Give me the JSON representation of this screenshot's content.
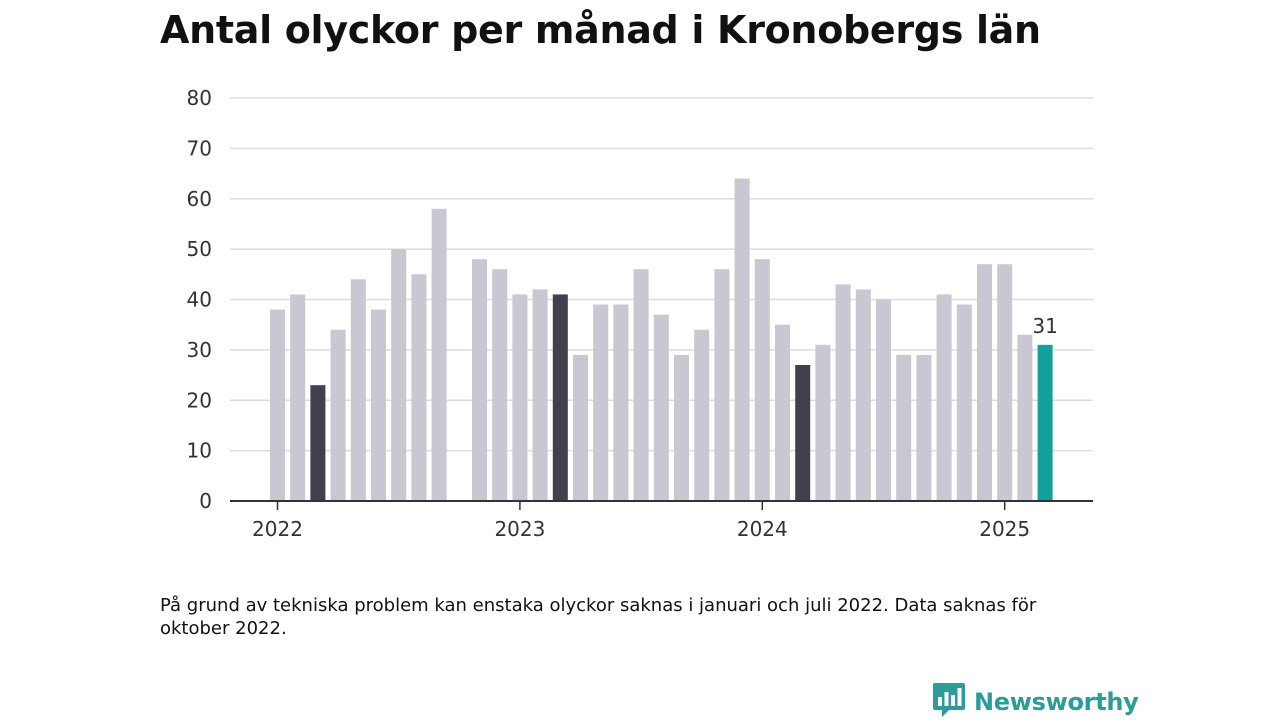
{
  "header": {
    "title": "Antal olyckor per månad i Kronobergs län"
  },
  "chart_data": {
    "type": "bar",
    "y_ticks": [
      0,
      10,
      20,
      30,
      40,
      50,
      60,
      70,
      80
    ],
    "ylim": [
      0,
      80
    ],
    "grid": true,
    "x_ticks": [
      {
        "label": "2022",
        "month": "2022-01"
      },
      {
        "label": "2023",
        "month": "2023-01"
      },
      {
        "label": "2024",
        "month": "2024-01"
      },
      {
        "label": "2025",
        "month": "2025-01"
      }
    ],
    "months": [
      "2022-01",
      "2022-02",
      "2022-03",
      "2022-04",
      "2022-05",
      "2022-06",
      "2022-07",
      "2022-08",
      "2022-09",
      "2022-10",
      "2022-11",
      "2022-12",
      "2023-01",
      "2023-02",
      "2023-03",
      "2023-04",
      "2023-05",
      "2023-06",
      "2023-07",
      "2023-08",
      "2023-09",
      "2023-10",
      "2023-11",
      "2023-12",
      "2024-01",
      "2024-02",
      "2024-03",
      "2024-04",
      "2024-05",
      "2024-06",
      "2024-07",
      "2024-08",
      "2024-09",
      "2024-10",
      "2024-11",
      "2024-12",
      "2025-01",
      "2025-02",
      "2025-03"
    ],
    "values": [
      38,
      41,
      23,
      34,
      44,
      38,
      50,
      45,
      58,
      null,
      48,
      46,
      41,
      42,
      41,
      29,
      39,
      39,
      46,
      37,
      29,
      34,
      46,
      64,
      48,
      35,
      27,
      31,
      43,
      42,
      40,
      29,
      29,
      41,
      39,
      47,
      47,
      33,
      31
    ],
    "highlighted_months": [
      "2022-03",
      "2023-03",
      "2024-03"
    ],
    "latest_month": "2025-03",
    "annotations": [
      {
        "month": "2025-03",
        "text": "31"
      }
    ]
  },
  "colors": {
    "bar_default": "#c8c7d2",
    "bar_highlight": "#41404c",
    "bar_latest": "#12a09a",
    "grid": "#dddddd",
    "axis": "#333333",
    "brand": "#2a9d9a"
  },
  "note": "På grund av tekniska problem kan enstaka olyckor saknas i januari och juli 2022. Data saknas för oktober 2022.",
  "footer": {
    "brand_name": "Newsworthy",
    "brand_icon": "newsworthy-logo-icon"
  }
}
